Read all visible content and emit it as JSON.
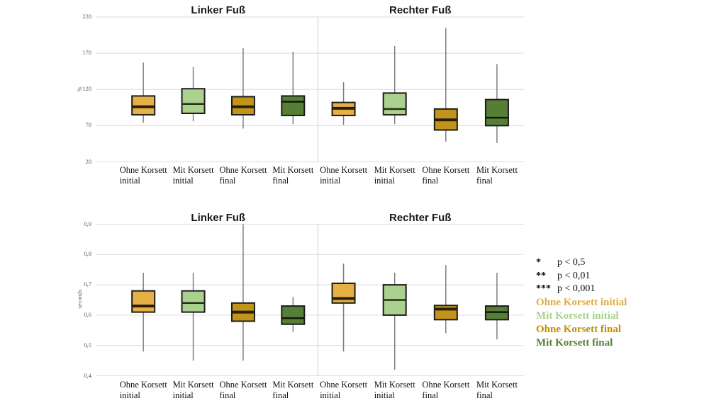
{
  "page": {
    "background": "#ffffff"
  },
  "styles": {
    "grid_color": "#dcdcdc",
    "divider_color": "#d4d4d4",
    "whisker_color": "#7f7f7f",
    "box_border_color": "#1c1c1c"
  },
  "legend": {
    "significance": [
      {
        "stars": "*",
        "label": "p < 0,5"
      },
      {
        "stars": "**",
        "label": "p < 0,01"
      },
      {
        "stars": "***",
        "label": "p < 0,001"
      }
    ],
    "series": [
      {
        "label": "Ohne Korsett initial",
        "color": "#dfac45"
      },
      {
        "label": "Mit Korsett initial",
        "color": "#a9cf8d"
      },
      {
        "label": "Ohne Korsett final",
        "color": "#bf9000"
      },
      {
        "label": "Mit Korsett final",
        "color": "#538135"
      }
    ]
  },
  "palette": {
    "Ohne Korsett initial": {
      "fill": "#e5b045",
      "median_color": "#2a2008",
      "median_width": 4
    },
    "Mit Korsett initial": {
      "fill": "#abd18e",
      "median_color": "#223018",
      "median_width": 2.5
    },
    "Ohne Korsett final": {
      "fill": "#c3941c",
      "median_color": "#2a2008",
      "median_width": 4
    },
    "Mit Korsett final": {
      "fill": "#567f35",
      "median_color": "#101810",
      "median_width": 2.5
    }
  },
  "chart_data": [
    {
      "type": "boxplot",
      "ylabel": "%",
      "ylim": [
        20,
        220
      ],
      "grid": true,
      "yticks": [
        {
          "label": "220",
          "value": 220
        },
        {
          "label": "170",
          "value": 170
        },
        {
          "label": "120",
          "value": 120
        },
        {
          "label": "70",
          "value": 70
        },
        {
          "label": "20",
          "value": 20
        }
      ],
      "panels": [
        {
          "title": "Linker Fuß",
          "boxes": [
            {
              "series": "Ohne Korsett initial",
              "category": [
                "Ohne Korsett",
                "initial"
              ],
              "whisker_low": 74,
              "q1": 85,
              "median": 96,
              "q3": 111,
              "whisker_high": 157
            },
            {
              "series": "Mit Korsett initial",
              "category": [
                "Mit Korsett",
                "initial"
              ],
              "whisker_low": 76,
              "q1": 87,
              "median": 100,
              "q3": 121,
              "whisker_high": 151
            },
            {
              "series": "Ohne Korsett final",
              "category": [
                "Ohne Korsett",
                "final"
              ],
              "whisker_low": 66,
              "q1": 85,
              "median": 96,
              "q3": 110,
              "whisker_high": 177
            },
            {
              "series": "Mit Korsett final",
              "category": [
                "Mit Korsett",
                "final"
              ],
              "whisker_low": 72,
              "q1": 84,
              "median": 103,
              "q3": 111,
              "whisker_high": 172
            }
          ]
        },
        {
          "title": "Rechter Fuß",
          "boxes": [
            {
              "series": "Ohne Korsett initial",
              "category": [
                "Ohne Korsett",
                "initial"
              ],
              "whisker_low": 71,
              "q1": 84,
              "median": 94,
              "q3": 102,
              "whisker_high": 130
            },
            {
              "series": "Mit Korsett initial",
              "category": [
                "Mit Korsett",
                "initial"
              ],
              "whisker_low": 72,
              "q1": 85,
              "median": 93,
              "q3": 115,
              "whisker_high": 180
            },
            {
              "series": "Ohne Korsett final",
              "category": [
                "Ohne Korsett",
                "final"
              ],
              "whisker_low": 48,
              "q1": 64,
              "median": 78,
              "q3": 93,
              "whisker_high": 205
            },
            {
              "series": "Mit Korsett final",
              "category": [
                "Mit Korsett",
                "final"
              ],
              "whisker_low": 46,
              "q1": 70,
              "median": 81,
              "q3": 106,
              "whisker_high": 155
            }
          ]
        }
      ]
    },
    {
      "type": "boxplot",
      "ylabel": "seconds",
      "ylim": [
        0.4,
        0.9
      ],
      "grid": true,
      "yticks": [
        {
          "label": "0,9",
          "value": 0.9
        },
        {
          "label": "0,8",
          "value": 0.8
        },
        {
          "label": "0,7",
          "value": 0.7
        },
        {
          "label": "0,6",
          "value": 0.6
        },
        {
          "label": "0,5",
          "value": 0.5
        },
        {
          "label": "0,4",
          "value": 0.4
        }
      ],
      "panels": [
        {
          "title": "Linker Fuß",
          "boxes": [
            {
              "series": "Ohne Korsett initial",
              "category": [
                "Ohne Korsett",
                "initial"
              ],
              "whisker_low": 0.48,
              "q1": 0.61,
              "median": 0.63,
              "q3": 0.68,
              "whisker_high": 0.74
            },
            {
              "series": "Mit Korsett initial",
              "category": [
                "Mit Korsett",
                "initial"
              ],
              "whisker_low": 0.45,
              "q1": 0.61,
              "median": 0.64,
              "q3": 0.68,
              "whisker_high": 0.74
            },
            {
              "series": "Ohne Korsett final",
              "category": [
                "Ohne Korsett",
                "final"
              ],
              "whisker_low": 0.45,
              "q1": 0.58,
              "median": 0.61,
              "q3": 0.64,
              "whisker_high": 0.9
            },
            {
              "series": "Mit Korsett final",
              "category": [
                "Mit Korsett",
                "final"
              ],
              "whisker_low": 0.545,
              "q1": 0.57,
              "median": 0.59,
              "q3": 0.63,
              "whisker_high": 0.66
            }
          ]
        },
        {
          "title": "Rechter Fuß",
          "boxes": [
            {
              "series": "Ohne Korsett initial",
              "category": [
                "Ohne Korsett",
                "initial"
              ],
              "whisker_low": 0.48,
              "q1": 0.64,
              "median": 0.655,
              "q3": 0.705,
              "whisker_high": 0.77
            },
            {
              "series": "Mit Korsett initial",
              "category": [
                "Mit Korsett",
                "initial"
              ],
              "whisker_low": 0.42,
              "q1": 0.6,
              "median": 0.65,
              "q3": 0.7,
              "whisker_high": 0.74
            },
            {
              "series": "Ohne Korsett final",
              "category": [
                "Ohne Korsett",
                "final"
              ],
              "whisker_low": 0.54,
              "q1": 0.585,
              "median": 0.62,
              "q3": 0.632,
              "whisker_high": 0.765
            },
            {
              "series": "Mit Korsett final",
              "category": [
                "Mit Korsett",
                "final"
              ],
              "whisker_low": 0.52,
              "q1": 0.585,
              "median": 0.61,
              "q3": 0.63,
              "whisker_high": 0.74
            }
          ]
        }
      ]
    }
  ]
}
